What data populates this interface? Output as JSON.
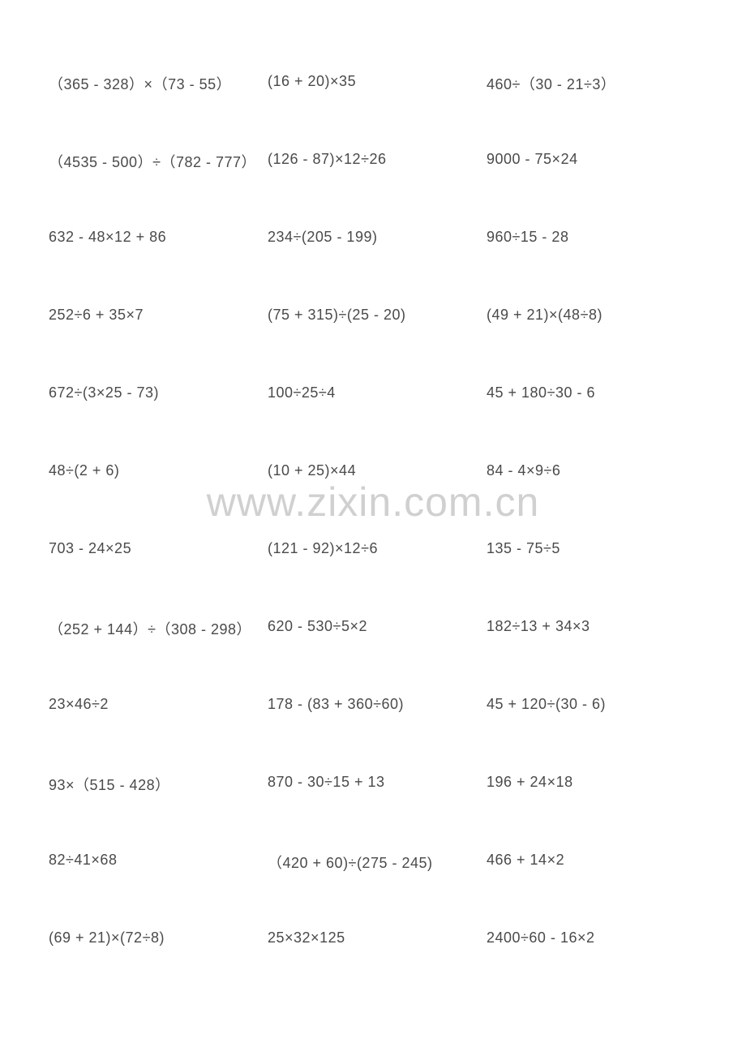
{
  "worksheet": {
    "watermark": "www.zixin.com.cn",
    "text_color": "#4a4a4a",
    "watermark_color": "#d0d0d0",
    "background_color": "#ffffff",
    "font_size": 18,
    "watermark_font_size": 50,
    "columns": 3,
    "rows": 12,
    "problems": [
      [
        "（365 - 328）×（73 - 55）",
        "(16 + 20)×35",
        "460÷（30 - 21÷3）"
      ],
      [
        "（4535 - 500）÷（782 - 777）",
        "(126 - 87)×12÷26",
        "9000 - 75×24"
      ],
      [
        "632 - 48×12 + 86",
        "234÷(205 - 199)",
        "960÷15 - 28"
      ],
      [
        "252÷6 + 35×7",
        "(75 + 315)÷(25 - 20)",
        "(49 + 21)×(48÷8)"
      ],
      [
        "672÷(3×25 - 73)",
        "100÷25÷4",
        "45 + 180÷30 - 6"
      ],
      [
        "48÷(2 + 6)",
        "(10 + 25)×44",
        "84 - 4×9÷6"
      ],
      [
        "703 - 24×25",
        "(121 - 92)×12÷6",
        "135 - 75÷5"
      ],
      [
        "（252 + 144）÷（308 - 298）",
        "620 - 530÷5×2",
        "182÷13 + 34×3"
      ],
      [
        "23×46÷2",
        "178 - (83 + 360÷60)",
        "45 + 120÷(30 - 6)"
      ],
      [
        "93×（515 - 428）",
        "870 - 30÷15 + 13",
        "196 + 24×18"
      ],
      [
        "82÷41×68",
        "（420 + 60)÷(275 - 245)",
        "466 + 14×2"
      ],
      [
        "(69 + 21)×(72÷8)",
        "25×32×125",
        "2400÷60 - 16×2"
      ]
    ]
  }
}
